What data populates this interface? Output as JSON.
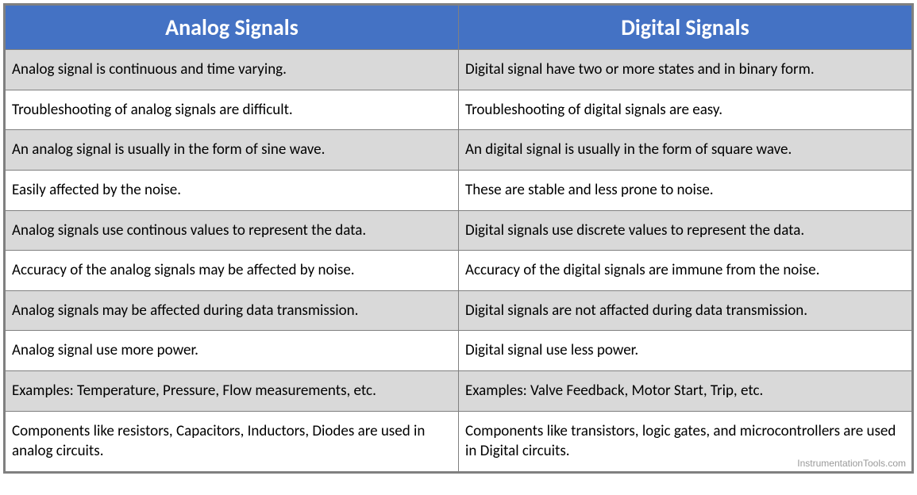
{
  "table": {
    "header_bg": "#4472c4",
    "header_color": "#ffffff",
    "odd_row_bg": "#d9d9d9",
    "even_row_bg": "#ffffff",
    "border_color": "#808080",
    "header_fontsize": 28,
    "cell_fontsize": 19,
    "columns": [
      "Analog Signals",
      "Digital Signals"
    ],
    "rows": [
      {
        "analog": "Analog signal is continuous and time varying.",
        "digital": "Digital signal have two or more states and in binary form."
      },
      {
        "analog": "Troubleshooting of analog signals are difficult.",
        "digital": "Troubleshooting of digital signals are easy."
      },
      {
        "analog": "An analog signal is usually in the form of sine wave.",
        "digital": "An digital signal is usually in the form of square wave."
      },
      {
        "analog": "Easily affected by the noise.",
        "digital": "These are stable and less prone to noise."
      },
      {
        "analog": "Analog signals use continous values to represent the data.",
        "digital": "Digital signals use discrete values to represent the data."
      },
      {
        "analog": "Accuracy of the analog signals may be affected by noise.",
        "digital": "Accuracy of the digital signals are immune from the noise."
      },
      {
        "analog": "Analog signals may be affected during data transmission.",
        "digital": "Digital signals are not affacted during data transmission."
      },
      {
        "analog": "Analog signal use more power.",
        "digital": "Digital signal use less power."
      },
      {
        "analog": "Examples: Temperature, Pressure, Flow measurements, etc.",
        "digital": "Examples: Valve Feedback, Motor Start, Trip, etc."
      },
      {
        "analog": "Components like resistors, Capacitors, Inductors, Diodes are used in analog circuits.",
        "digital": "Components like transistors, logic gates, and microcontrollers are used in Digital circuits."
      }
    ]
  },
  "watermark": "InstrumentationTools.com"
}
